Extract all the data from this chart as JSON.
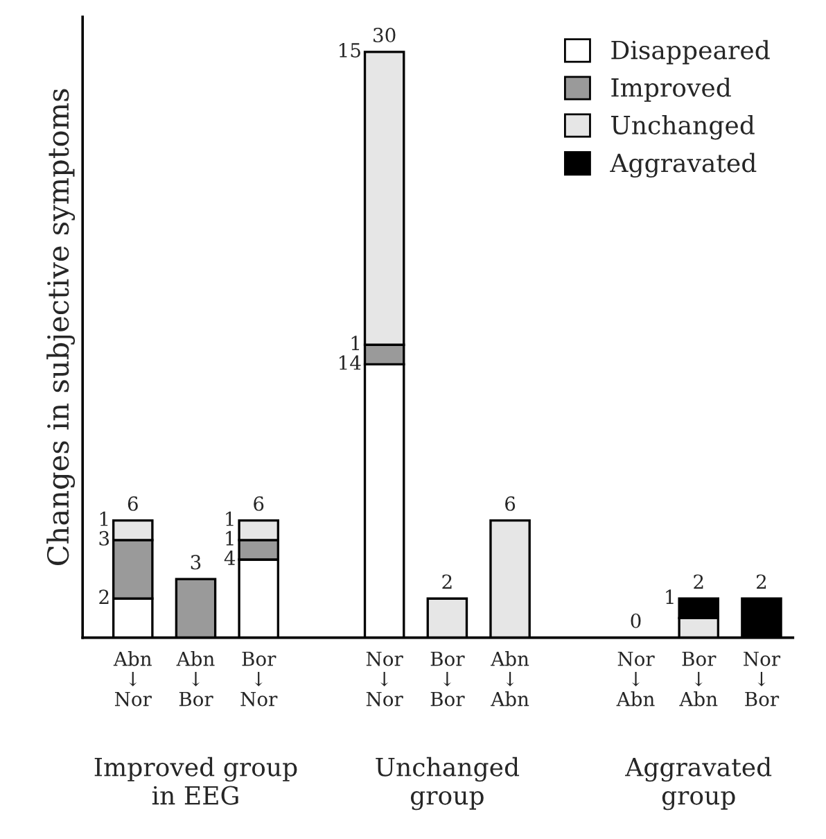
{
  "chart_data": {
    "type": "bar",
    "stacked": true,
    "ylabel": "Changes in subjective symptoms",
    "categories": [
      "Abn\n↓\nNor",
      "Abn\n↓\nBor",
      "Bor\n↓\nNor",
      null,
      "Nor\n↓\nNor",
      "Bor\n↓\nBor",
      "Abn\n↓\nAbn",
      null,
      "Nor\n↓\nAbn",
      "Bor\n↓\nAbn",
      "Nor\n↓\nBor"
    ],
    "series": [
      {
        "name": "Disappeared",
        "color": "#ffffff",
        "values": [
          2,
          null,
          4,
          null,
          14,
          null,
          null,
          null,
          null,
          null,
          null
        ],
        "value_labels": [
          "2",
          null,
          "4",
          null,
          "14",
          null,
          null,
          null,
          null,
          null,
          null
        ]
      },
      {
        "name": "Improved",
        "color": "#9a9a9a",
        "values": [
          3,
          3,
          1,
          null,
          1,
          null,
          null,
          null,
          null,
          null,
          null
        ],
        "value_labels": [
          "3",
          null,
          "1",
          null,
          "1",
          null,
          null,
          null,
          null,
          null,
          null
        ]
      },
      {
        "name": "Unchanged",
        "color": "#e6e6e6",
        "values": [
          1,
          null,
          1,
          null,
          15,
          2,
          6,
          null,
          null,
          1,
          null
        ],
        "value_labels": [
          "1",
          null,
          "1",
          null,
          "15",
          null,
          null,
          null,
          null,
          null,
          null
        ]
      },
      {
        "name": "Aggravated",
        "color": "#000000",
        "values": [
          null,
          null,
          null,
          null,
          null,
          null,
          null,
          null,
          0,
          1,
          2
        ],
        "value_labels": [
          null,
          null,
          null,
          null,
          null,
          null,
          null,
          null,
          null,
          "1",
          null
        ]
      }
    ],
    "totals": [
      "6",
      "3",
      "6",
      null,
      "30",
      "2",
      "6",
      null,
      "0",
      "2",
      "2"
    ],
    "annotations": [
      "Improved group\nin EEG",
      "Unchanged\ngroup",
      "Aggravated\ngroup"
    ],
    "legend": "top right",
    "grid": false,
    "tick_labels": "x"
  }
}
